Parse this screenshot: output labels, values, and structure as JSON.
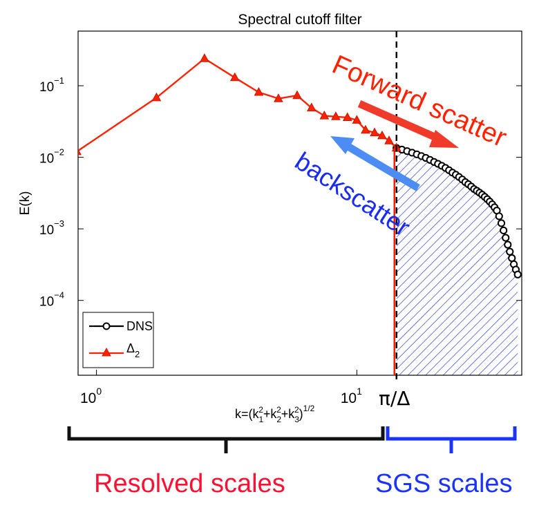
{
  "chart_data": {
    "type": "line",
    "title": "Spectral cutoff filter",
    "xlabel": "k=(k₁²+k₂²+k₃²)¹ᐟ²",
    "xlabel_parts": {
      "base": "k=(k",
      "s1": "1",
      "s2": "2",
      "s3": "3",
      "exp": "1/2"
    },
    "ylabel": "E(k)",
    "xscale": "log",
    "yscale": "log",
    "xlim": [
      0.85,
      43
    ],
    "ylim": [
      9e-06,
      0.58
    ],
    "x_ticks": [
      {
        "value": 1,
        "base": "10",
        "exp": "0"
      },
      {
        "value": 10,
        "base": "10",
        "exp": "1"
      }
    ],
    "y_ticks": [
      {
        "value": 0.1,
        "base": "10",
        "exp": "−1"
      },
      {
        "value": 0.01,
        "base": "10",
        "exp": "−2"
      },
      {
        "value": 0.001,
        "base": "10",
        "exp": "−3"
      },
      {
        "value": 0.0001,
        "base": "10",
        "exp": "−4"
      }
    ],
    "legend_position": "bottom-left",
    "series": [
      {
        "name": "DNS",
        "color": "#000000",
        "marker": "circle",
        "x": [
          14.2,
          14.9,
          15.6,
          16.3,
          17.0,
          17.7,
          18.4,
          19.1,
          19.8,
          20.5,
          21.2,
          21.9,
          22.6,
          23.3,
          24.0,
          24.7,
          25.4,
          26.1,
          26.8,
          27.5,
          28.2,
          28.9,
          29.6,
          30.3,
          31.0,
          31.7,
          32.4,
          33.1,
          33.8,
          34.5,
          35.2,
          35.9,
          36.6,
          37.3,
          38.0,
          38.7,
          39.4,
          40.1,
          40.8,
          41.5
        ],
        "y": [
          0.0135,
          0.0128,
          0.0122,
          0.0116,
          0.011,
          0.0104,
          0.0098,
          0.0092,
          0.0086,
          0.0081,
          0.0076,
          0.0071,
          0.0066,
          0.0061,
          0.0057,
          0.0053,
          0.0049,
          0.0045,
          0.0042,
          0.0039,
          0.0036,
          0.0034,
          0.0032,
          0.003,
          0.0028,
          0.0026,
          0.0024,
          0.0022,
          0.002,
          0.0018,
          0.0015,
          0.0012,
          0.00095,
          0.00075,
          0.0006,
          0.00048,
          0.00039,
          0.00032,
          0.00027,
          0.00023
        ]
      },
      {
        "name": "Δ",
        "name_sub": "2",
        "color": "#ff2200",
        "marker": "triangle",
        "x": [
          0.84,
          1.7,
          2.6,
          3.4,
          4.2,
          5.0,
          5.9,
          6.7,
          7.5,
          8.3,
          9.2,
          10.0,
          10.8,
          11.7,
          12.5,
          13.3,
          14.2
        ],
        "y": [
          0.012,
          0.068,
          0.24,
          0.13,
          0.081,
          0.066,
          0.073,
          0.049,
          0.038,
          0.037,
          0.036,
          0.033,
          0.024,
          0.022,
          0.02,
          0.017,
          0.0135
        ]
      }
    ],
    "cutoff": {
      "x": 14.2,
      "label": "π/Δ"
    }
  },
  "annotations": {
    "forward": {
      "text": "Forward scatter",
      "color": "#ff2200"
    },
    "back": {
      "text": "backscatter",
      "color": "#1a2cf2"
    },
    "arrow_forward_color": "#f03a2a",
    "arrow_back_color": "#4d8cf2"
  },
  "brackets": {
    "resolved": {
      "label": "Resolved scales",
      "color": "#ff1133"
    },
    "sgs": {
      "label": "SGS scales",
      "color": "#1a33ff"
    }
  },
  "colors": {
    "hatch": "#1a33cc"
  }
}
